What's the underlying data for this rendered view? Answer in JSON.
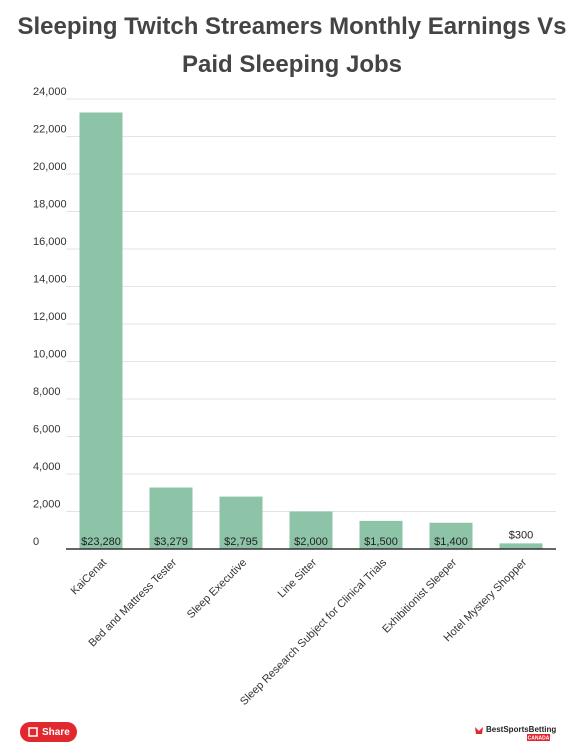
{
  "chart_data": {
    "type": "bar",
    "title": "Sleeping Twitch Streamers Monthly Earnings Vs Paid Sleeping Jobs",
    "categories": [
      "KaiCenat",
      "Bed and Mattress Tester",
      "Sleep Executive",
      "Line Sitter",
      "Sleep Research Subject for Clinical Trials",
      "Exhibitionist Sleeper",
      "Hotel Mystery Shopper"
    ],
    "values": [
      23280,
      3279,
      2795,
      2000,
      1500,
      1400,
      300
    ],
    "value_labels": [
      "$23,280",
      "$3,279",
      "$2,795",
      "$2,000",
      "$1,500",
      "$1,400",
      "$300"
    ],
    "color": "#8dc3a7",
    "ylim": [
      0,
      24000
    ],
    "yticks": [
      0,
      {
        "value": 2000,
        "label": "2,000"
      },
      {
        "value": 4000,
        "label": "4,000"
      },
      {
        "value": 6000,
        "label": "6,000"
      },
      {
        "value": 8000,
        "label": "8,000"
      },
      {
        "value": 10000,
        "label": "10,000"
      },
      {
        "value": 12000,
        "label": "12,000"
      },
      {
        "value": 14000,
        "label": "14,000"
      },
      {
        "value": 16000,
        "label": "16,000"
      },
      {
        "value": 18000,
        "label": "18,000"
      },
      {
        "value": 20000,
        "label": "20,000"
      },
      {
        "value": 22000,
        "label": "22,000"
      },
      {
        "value": 24000,
        "label": "24,000"
      }
    ],
    "grid": true
  },
  "footer": {
    "share": "Share",
    "logo": "BestSportsBetting",
    "logo_sub": "CANADA"
  }
}
